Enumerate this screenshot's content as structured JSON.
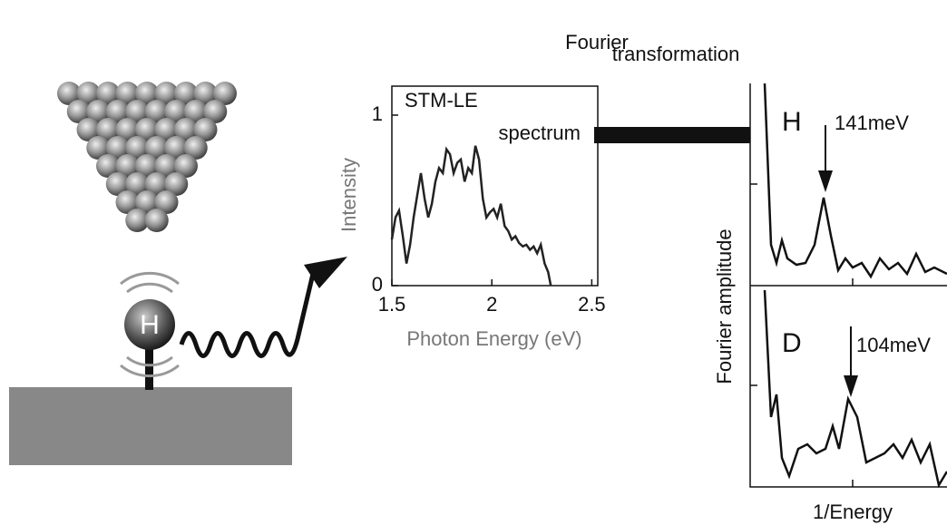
{
  "labels": {
    "fourier_1": "Fourier",
    "fourier_2": "transformation",
    "atom": "H",
    "panel_h": "H",
    "peak_h": "141meV",
    "panel_d": "D",
    "peak_d": "104meV",
    "fourier_y": "Fourier amplitude",
    "fourier_x": "1/Energy"
  },
  "chart_data": {
    "type": "line",
    "title": "STM-LE",
    "subtitle": "spectrum",
    "x_label": "Photon Energy (eV)",
    "y_label": "Intensity",
    "x": [
      1.5,
      1.518,
      1.536,
      1.555,
      1.573,
      1.591,
      1.609,
      1.627,
      1.645,
      1.664,
      1.682,
      1.7,
      1.718,
      1.736,
      1.755,
      1.773,
      1.791,
      1.809,
      1.827,
      1.845,
      1.864,
      1.882,
      1.9,
      1.918,
      1.936,
      1.955,
      1.973,
      1.991,
      2.009,
      2.027,
      2.045,
      2.064,
      2.082,
      2.1,
      2.118,
      2.136,
      2.155,
      2.173,
      2.191,
      2.209,
      2.227,
      2.245,
      2.264,
      2.282,
      2.295
    ],
    "values": [
      0.27,
      0.4,
      0.44,
      0.29,
      0.13,
      0.24,
      0.4,
      0.53,
      0.66,
      0.51,
      0.4,
      0.48,
      0.61,
      0.69,
      0.66,
      0.8,
      0.77,
      0.66,
      0.72,
      0.74,
      0.61,
      0.69,
      0.66,
      0.82,
      0.74,
      0.51,
      0.4,
      0.43,
      0.45,
      0.4,
      0.48,
      0.35,
      0.32,
      0.27,
      0.29,
      0.25,
      0.23,
      0.24,
      0.21,
      0.23,
      0.19,
      0.24,
      0.13,
      0.08,
      0
    ],
    "color": "#222222",
    "xlim": [
      1.5,
      2.53
    ],
    "ylim": [
      0,
      1.17
    ],
    "xticks": [
      1.5,
      2,
      2.5
    ],
    "yticks": [
      0,
      1
    ]
  }
}
